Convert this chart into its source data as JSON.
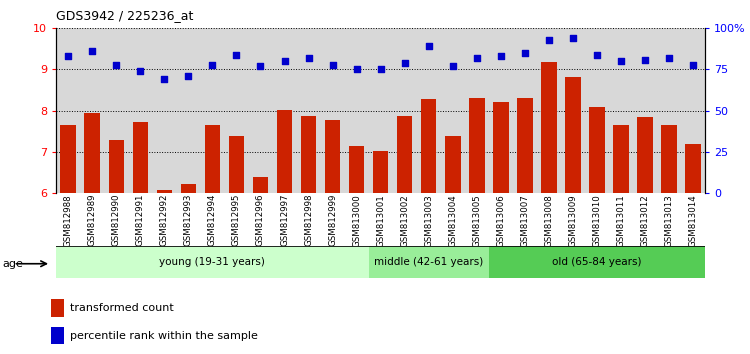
{
  "title": "GDS3942 / 225236_at",
  "samples": [
    "GSM812988",
    "GSM812989",
    "GSM812990",
    "GSM812991",
    "GSM812992",
    "GSM812993",
    "GSM812994",
    "GSM812995",
    "GSM812996",
    "GSM812997",
    "GSM812998",
    "GSM812999",
    "GSM813000",
    "GSM813001",
    "GSM813002",
    "GSM813003",
    "GSM813004",
    "GSM813005",
    "GSM813006",
    "GSM813007",
    "GSM813008",
    "GSM813009",
    "GSM813010",
    "GSM813011",
    "GSM813012",
    "GSM813013",
    "GSM813014"
  ],
  "bar_values": [
    7.65,
    7.95,
    7.28,
    7.72,
    6.08,
    6.22,
    7.65,
    7.38,
    6.38,
    8.02,
    7.88,
    7.78,
    7.15,
    7.02,
    7.88,
    8.28,
    7.38,
    8.3,
    8.22,
    8.3,
    9.18,
    8.82,
    8.08,
    7.65,
    7.85,
    7.65,
    7.2
  ],
  "dot_values": [
    83,
    86,
    78,
    74,
    69,
    71,
    78,
    84,
    77,
    80,
    82,
    78,
    75,
    75,
    79,
    89,
    77,
    82,
    83,
    85,
    93,
    94,
    84,
    80,
    81,
    82,
    78
  ],
  "ylim_left": [
    6,
    10
  ],
  "ylim_right": [
    0,
    100
  ],
  "yticks_left": [
    6,
    7,
    8,
    9,
    10
  ],
  "yticks_right": [
    0,
    25,
    50,
    75,
    100
  ],
  "ytick_labels_right": [
    "0",
    "25",
    "50",
    "75",
    "100%"
  ],
  "bar_color": "#cc2200",
  "dot_color": "#0000cc",
  "age_groups": [
    {
      "label": "young (19-31 years)",
      "start": 0,
      "end": 13,
      "color": "#ccffcc"
    },
    {
      "label": "middle (42-61 years)",
      "start": 13,
      "end": 18,
      "color": "#99ee99"
    },
    {
      "label": "old (65-84 years)",
      "start": 18,
      "end": 27,
      "color": "#55cc55"
    }
  ],
  "legend_bar_label": "transformed count",
  "legend_dot_label": "percentile rank within the sample",
  "background_color": "#d8d8d8",
  "plot_area_color": "#ffffff",
  "dotted_line_color": "#000000"
}
